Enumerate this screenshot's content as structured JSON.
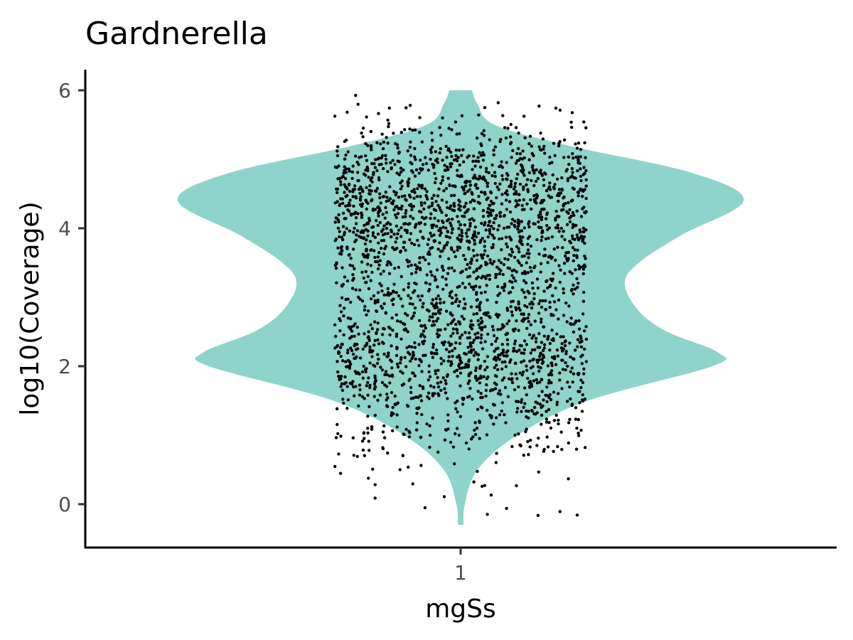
{
  "chart_data": {
    "type": "violin",
    "title": "Gardnerella",
    "xlabel": "mgSs",
    "ylabel": "log10(Coverage)",
    "categories": [
      "1"
    ],
    "y_ticks": [
      "0",
      "2",
      "4",
      "6"
    ],
    "ylim": [
      -0.6,
      6.3
    ],
    "grid": false,
    "legend": "none",
    "violin_fill": "#8fd4ca",
    "point_color": "#000000",
    "series": [
      {
        "category": "1",
        "n_points": 2600,
        "min": -0.3,
        "max": 6.0,
        "density_profile": [
          {
            "y": -0.3,
            "w": 0.01
          },
          {
            "y": 0.0,
            "w": 0.015
          },
          {
            "y": 0.5,
            "w": 0.06
          },
          {
            "y": 1.0,
            "w": 0.2
          },
          {
            "y": 1.5,
            "w": 0.45
          },
          {
            "y": 2.0,
            "w": 0.89
          },
          {
            "y": 2.2,
            "w": 0.91
          },
          {
            "y": 2.5,
            "w": 0.73
          },
          {
            "y": 2.8,
            "w": 0.63
          },
          {
            "y": 3.2,
            "w": 0.58
          },
          {
            "y": 3.5,
            "w": 0.63
          },
          {
            "y": 3.9,
            "w": 0.78
          },
          {
            "y": 4.4,
            "w": 1.0
          },
          {
            "y": 4.8,
            "w": 0.82
          },
          {
            "y": 5.2,
            "w": 0.38
          },
          {
            "y": 5.5,
            "w": 0.12
          },
          {
            "y": 5.8,
            "w": 0.06
          },
          {
            "y": 6.0,
            "w": 0.04
          }
        ]
      }
    ]
  }
}
